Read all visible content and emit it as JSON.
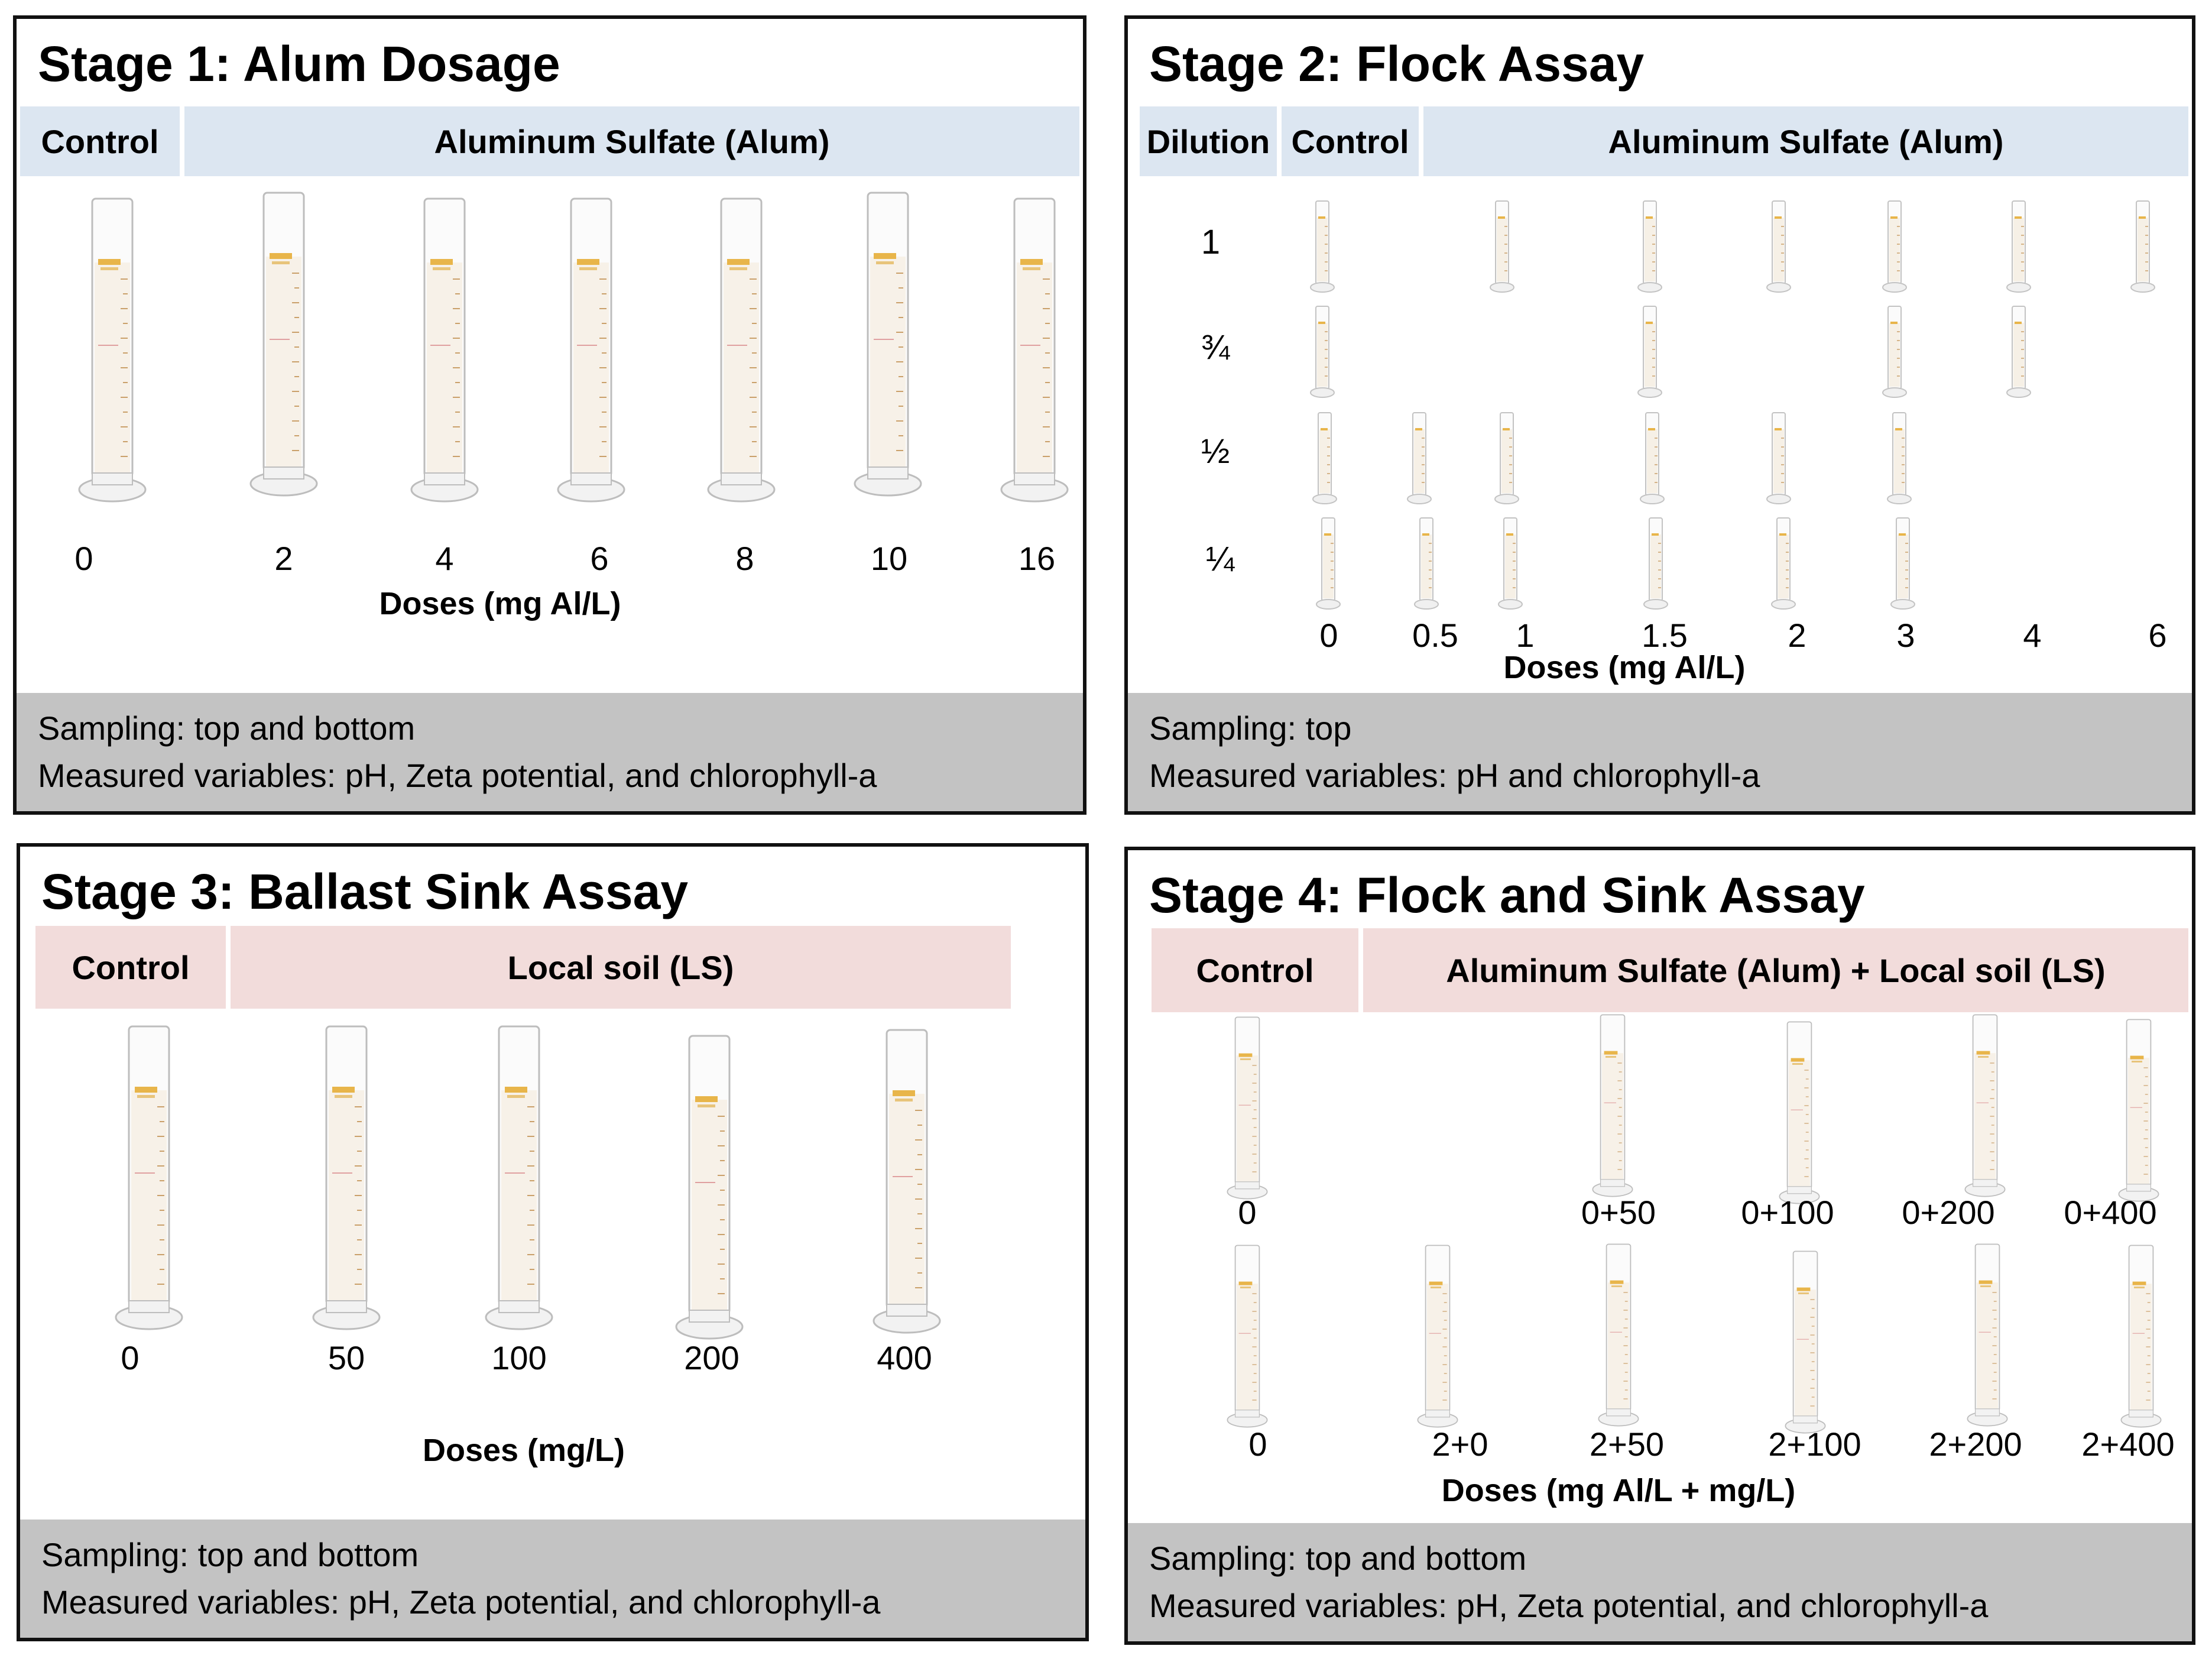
{
  "stage1": {
    "title": "Stage 1: Alum Dosage",
    "header": {
      "control": "Control",
      "group": "Aluminum Sulfate (Alum)"
    },
    "doses": [
      "0",
      "2",
      "4",
      "6",
      "8",
      "10",
      "16"
    ],
    "axis_label": "Doses (mg Al/L)",
    "sampling": "Sampling: top and bottom",
    "measured": "Measured variables: pH, Zeta potential, and chlorophyll-a"
  },
  "stage2": {
    "title": "Stage 2: Flock Assay",
    "header": {
      "dilution": "Dilution",
      "control": "Control",
      "group": "Aluminum Sulfate (Alum)"
    },
    "dilutions": [
      "1",
      "¾",
      "½",
      "¼"
    ],
    "doses": [
      "0",
      "0.5",
      "1",
      "1.5",
      "2",
      "3",
      "4",
      "6"
    ],
    "axis_label": "Doses (mg Al/L)",
    "sampling": "Sampling: top",
    "measured": "Measured variables: pH and chlorophyll-a"
  },
  "stage3": {
    "title": "Stage 3: Ballast Sink Assay",
    "header": {
      "control": "Control",
      "group": "Local soil (LS)"
    },
    "doses": [
      "0",
      "50",
      "100",
      "200",
      "400"
    ],
    "axis_label": "Doses (mg/L)",
    "sampling": "Sampling: top and bottom",
    "measured": "Measured variables: pH, Zeta potential, and chlorophyll-a"
  },
  "stage4": {
    "title": "Stage 4: Flock and Sink Assay",
    "header": {
      "control": "Control",
      "group": "Aluminum Sulfate (Alum) + Local soil (LS)"
    },
    "row1_doses": [
      "0",
      "0+50",
      "0+100",
      "0+200",
      "0+400"
    ],
    "row2_doses": [
      "0",
      "2+0",
      "2+50",
      "2+100",
      "2+200",
      "2+400"
    ],
    "axis_label": "Doses (mg Al/L + mg/L)",
    "sampling": "Sampling: top and bottom",
    "measured": "Measured variables: pH, Zeta potential, and chlorophyll-a"
  }
}
